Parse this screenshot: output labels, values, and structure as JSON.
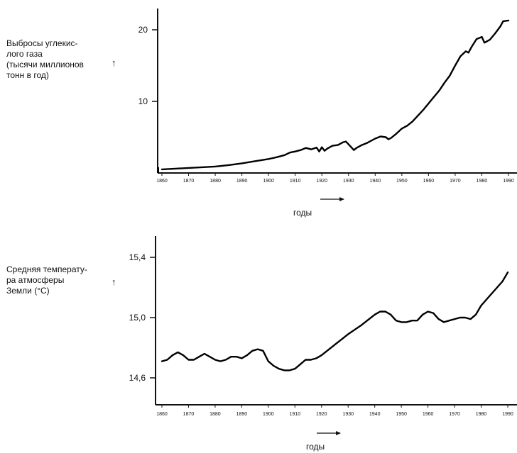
{
  "chart_data": [
    {
      "type": "line",
      "ylabel": "Выбросы углекис-\nлого газа\n(тысячи миллионов\nтонн в год)",
      "ylabel_arrow": "↑",
      "xlabel": "годы",
      "xlabel_arrow": "→",
      "xticks": [
        1860,
        1870,
        1880,
        1890,
        1900,
        1910,
        1920,
        1930,
        1940,
        1950,
        1960,
        1970,
        1980,
        1990
      ],
      "yticks": [
        "10",
        "20"
      ],
      "ytick_values": [
        10,
        20
      ],
      "xlim": [
        1860,
        1990
      ],
      "ylim": [
        0,
        23
      ],
      "series": [
        {
          "x": [
            1860,
            1865,
            1870,
            1875,
            1880,
            1885,
            1890,
            1895,
            1900,
            1903,
            1906,
            1908,
            1910,
            1912,
            1914,
            1916,
            1918,
            1919,
            1920,
            1921,
            1922,
            1924,
            1926,
            1928,
            1929,
            1930,
            1932,
            1933,
            1935,
            1937,
            1940,
            1942,
            1944,
            1945,
            1946,
            1948,
            1950,
            1952,
            1954,
            1956,
            1958,
            1960,
            1962,
            1964,
            1966,
            1968,
            1970,
            1972,
            1974,
            1975,
            1976,
            1978,
            1980,
            1981,
            1983,
            1985,
            1987,
            1988,
            1990
          ],
          "y": [
            0.5,
            0.6,
            0.7,
            0.8,
            0.9,
            1.1,
            1.35,
            1.65,
            1.95,
            2.2,
            2.5,
            2.85,
            3.0,
            3.2,
            3.5,
            3.3,
            3.55,
            3.0,
            3.6,
            3.1,
            3.4,
            3.8,
            3.9,
            4.3,
            4.4,
            4.0,
            3.2,
            3.5,
            3.9,
            4.2,
            4.8,
            5.1,
            5.0,
            4.7,
            4.9,
            5.5,
            6.2,
            6.6,
            7.2,
            8.0,
            8.8,
            9.7,
            10.6,
            11.5,
            12.6,
            13.6,
            15.0,
            16.3,
            17.0,
            16.8,
            17.5,
            18.7,
            19.0,
            18.2,
            18.6,
            19.5,
            20.5,
            21.2,
            21.3
          ]
        }
      ]
    },
    {
      "type": "line",
      "ylabel": "Средняя температу-\nра атмосферы\nЗемли (°С)",
      "ylabel_arrow": "↑",
      "xlabel": "годы",
      "xlabel_arrow": "→",
      "xticks": [
        1860,
        1870,
        1880,
        1890,
        1900,
        1910,
        1920,
        1930,
        1940,
        1950,
        1960,
        1970,
        1980,
        1990
      ],
      "yticks": [
        "14,6",
        "15,0",
        "15,4"
      ],
      "ytick_values": [
        14.6,
        15.0,
        15.4
      ],
      "xlim": [
        1860,
        1990
      ],
      "ylim": [
        14.44,
        15.62
      ],
      "series": [
        {
          "x": [
            1860,
            1862,
            1864,
            1866,
            1868,
            1870,
            1872,
            1874,
            1876,
            1878,
            1880,
            1882,
            1884,
            1886,
            1888,
            1890,
            1892,
            1894,
            1896,
            1898,
            1900,
            1902,
            1904,
            1906,
            1908,
            1910,
            1912,
            1914,
            1916,
            1918,
            1920,
            1925,
            1930,
            1935,
            1940,
            1942,
            1944,
            1946,
            1948,
            1950,
            1952,
            1954,
            1956,
            1958,
            1960,
            1962,
            1964,
            1966,
            1968,
            1970,
            1972,
            1974,
            1976,
            1978,
            1980,
            1982,
            1984,
            1986,
            1988,
            1990
          ],
          "y": [
            14.71,
            14.72,
            14.75,
            14.77,
            14.75,
            14.72,
            14.72,
            14.74,
            14.76,
            14.74,
            14.72,
            14.71,
            14.72,
            14.74,
            14.74,
            14.73,
            14.75,
            14.78,
            14.79,
            14.78,
            14.71,
            14.68,
            14.66,
            14.65,
            14.65,
            14.66,
            14.69,
            14.72,
            14.72,
            14.73,
            14.75,
            14.82,
            14.89,
            14.95,
            15.02,
            15.04,
            15.04,
            15.02,
            14.98,
            14.97,
            14.97,
            14.98,
            14.98,
            15.02,
            15.04,
            15.03,
            14.99,
            14.97,
            14.98,
            14.99,
            15.0,
            15.0,
            14.99,
            15.02,
            15.08,
            15.12,
            15.16,
            15.2,
            15.24,
            15.3
          ]
        }
      ]
    }
  ]
}
